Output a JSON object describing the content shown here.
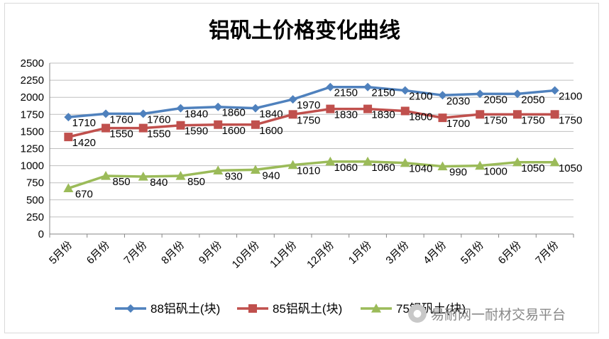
{
  "chart_data": {
    "type": "line",
    "title": "铝矾土价格变化曲线",
    "categories": [
      "5月份",
      "6月份",
      "7月份",
      "8月份",
      "9月份",
      "10月份",
      "11月份",
      "12月份",
      "1月份",
      "3月份",
      "4月份",
      "5月份",
      "6月份",
      "7月份"
    ],
    "ylim": [
      0,
      2500
    ],
    "yticks": [
      0,
      250,
      500,
      750,
      1000,
      1250,
      1500,
      1750,
      2000,
      2250,
      2500
    ],
    "grid": true,
    "legend_position": "bottom",
    "series": [
      {
        "name": "88铝矾土(块)",
        "color": "#4f81bd",
        "marker": "diamond",
        "values": [
          1710,
          1760,
          1760,
          1840,
          1860,
          1840,
          1970,
          2150,
          2150,
          2100,
          2030,
          2050,
          2050,
          2100
        ]
      },
      {
        "name": "85铝矾土(块)",
        "color": "#c0504d",
        "marker": "square",
        "values": [
          1420,
          1550,
          1550,
          1590,
          1600,
          1600,
          1750,
          1830,
          1830,
          1800,
          1700,
          1750,
          1750,
          1750
        ]
      },
      {
        "name": "75铝矾土(块)",
        "color": "#9bbb59",
        "marker": "triangle",
        "values": [
          670,
          850,
          840,
          850,
          930,
          940,
          1010,
          1060,
          1060,
          1040,
          990,
          1000,
          1050,
          1050
        ]
      }
    ]
  },
  "watermark": {
    "icon": "wechat-icon",
    "text": "易耐网一耐材交易平台"
  }
}
